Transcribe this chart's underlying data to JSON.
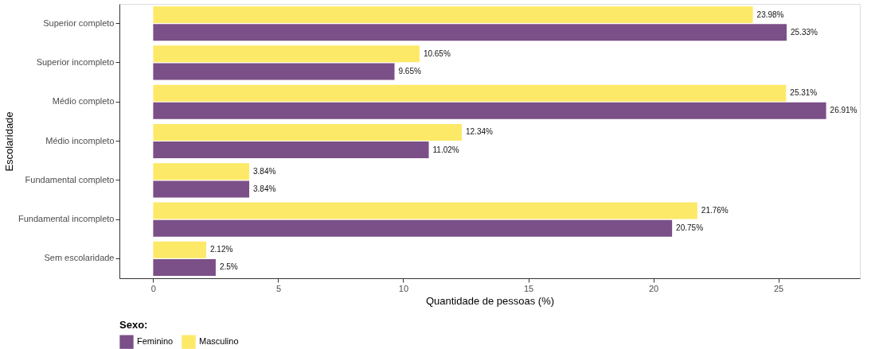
{
  "chart_data": {
    "type": "bar",
    "orientation": "horizontal",
    "xlabel": "Quantidade de pessoas (%)",
    "ylabel": "Escolaridade",
    "legend_title": "Sexo:",
    "categories": [
      "Superior completo",
      "Superior incompleto",
      "Médio completo",
      "Médio incompleto",
      "Fundamental completo",
      "Fundamental incompleto",
      "Sem escolaridade"
    ],
    "series": [
      {
        "name": "Feminino",
        "color": "#7b4f87",
        "values": [
          25.33,
          9.65,
          26.91,
          11.02,
          3.84,
          20.75,
          2.5
        ],
        "value_labels": [
          "25.33%",
          "9.65%",
          "26.91%",
          "11.02%",
          "3.84%",
          "20.75%",
          "2.5%"
        ]
      },
      {
        "name": "Masculino",
        "color": "#fde968",
        "values": [
          23.98,
          10.65,
          25.31,
          12.34,
          3.84,
          21.76,
          2.12
        ],
        "value_labels": [
          "23.98%",
          "10.65%",
          "25.31%",
          "12.34%",
          "3.84%",
          "21.76%",
          "2.12%"
        ]
      }
    ],
    "xlim": [
      -1.35,
      28.26
    ],
    "xticks": [
      0,
      5,
      10,
      15,
      20,
      25
    ],
    "grid": false,
    "legend": "bottom"
  }
}
